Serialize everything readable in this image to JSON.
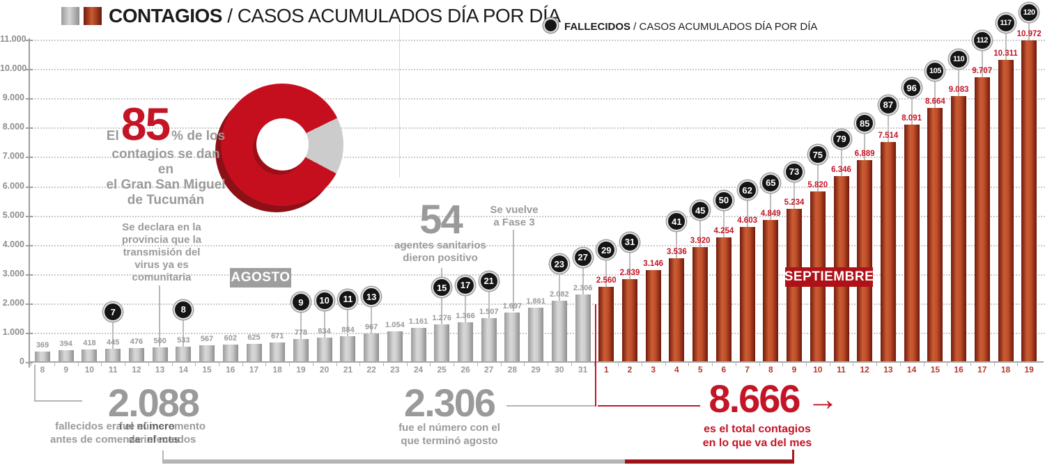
{
  "legend": {
    "contagios_bold": "CONTAGIOS",
    "contagios_rest": " / CASOS ACUMULADOS DÍA POR DÍA",
    "fallecidos_bold": "FALLECIDOS",
    "fallecidos_rest": " / CASOS ACUMULADOS DÍA POR DÍA"
  },
  "colors": {
    "accent_red": "#c41425",
    "dark_red": "#9e1317",
    "bar_red": "#bf4f2a",
    "bar_gray": "#bdbdbd",
    "text_gray": "#9a9a9a",
    "badge_black": "#151515"
  },
  "badges": {
    "agosto": "AGOSTO",
    "septiembre": "SEPTIEMBRE"
  },
  "donut": {
    "prefix": "El",
    "big": "85",
    "mid": "% de los",
    "rest": "contagios se dan en\nel Gran San Miguel\nde Tucumán",
    "red_pct": 85,
    "gray_pct": 15
  },
  "annotations": {
    "declara": "Se declara en la\nprovincia que la\ntransmisión del\nvirus ya es\ncomunitaria",
    "sanitarios_big": "54",
    "sanitarios_text": "agentes sanitarios\ndieron positivo",
    "fase3": "Se vuelve\na Fase 3"
  },
  "callouts": {
    "aug_start": {
      "number": "2.088",
      "caption_a": "fallecidos era el número\nantes de comenzar el mes",
      "caption_b": "fue el incremento\nde infectados"
    },
    "aug_end": {
      "number": "2.306",
      "caption": "fue el número con el\nque terminó agosto"
    },
    "sep": {
      "number": "8.666",
      "arrow": "→",
      "caption": "es el total contagios\nen lo que va del mes"
    }
  },
  "chart_data": {
    "type": "bar",
    "title": "CONTAGIOS / CASOS ACUMULADOS DÍA POR DÍA",
    "secondary_series_title": "FALLECIDOS / CASOS ACUMULADOS DÍA POR DÍA",
    "ylim": [
      0,
      11000
    ],
    "grid": true,
    "yticks": [
      {
        "v": 11000,
        "label": "11.000"
      },
      {
        "v": 10000,
        "label": "10.000"
      },
      {
        "v": 9000,
        "label": "9.000"
      },
      {
        "v": 8000,
        "label": "8.000"
      },
      {
        "v": 7000,
        "label": "7.000"
      },
      {
        "v": 6000,
        "label": "6.000"
      },
      {
        "v": 5000,
        "label": "5.000"
      },
      {
        "v": 4000,
        "label": "4.000"
      },
      {
        "v": 3000,
        "label": "3.000"
      },
      {
        "v": 2000,
        "label": "2.000"
      },
      {
        "v": 1000,
        "label": "1.000"
      },
      {
        "v": 0,
        "label": "0"
      }
    ],
    "months": [
      {
        "name": "AGOSTO",
        "days": [
          8,
          9,
          10,
          11,
          12,
          13,
          14,
          15,
          16,
          17,
          18,
          19,
          20,
          21,
          22,
          23,
          24,
          25,
          26,
          27,
          28,
          29,
          30,
          31
        ],
        "values": [
          369,
          394,
          418,
          445,
          476,
          500,
          533,
          567,
          602,
          625,
          671,
          778,
          834,
          884,
          967,
          1054,
          1161,
          1276,
          1366,
          1507,
          1697,
          1861,
          2082,
          2306
        ],
        "labels": [
          "369",
          "394",
          "418",
          "445",
          "476",
          "500",
          "533",
          "567",
          "602",
          "625",
          "671",
          "778",
          "834",
          "884",
          "967",
          "1.054",
          "1.161",
          "1.276",
          "1.366",
          "1.507",
          "1.697",
          "1.861",
          "2.082",
          "2.306"
        ]
      },
      {
        "name": "SEPTIEMBRE",
        "days": [
          1,
          2,
          3,
          4,
          5,
          6,
          7,
          8,
          9,
          10,
          11,
          12,
          13,
          14,
          15,
          16,
          17,
          18,
          19
        ],
        "values": [
          2560,
          2839,
          3146,
          3536,
          3920,
          4254,
          4603,
          4849,
          5234,
          5820,
          6346,
          6889,
          7514,
          8091,
          8664,
          9083,
          9707,
          10311,
          10972
        ],
        "labels": [
          "2.560",
          "2.839",
          "3.146",
          "3.536",
          "3.920",
          "4.254",
          "4.603",
          "4.849",
          "5.234",
          "5.820",
          "6.346",
          "6.889",
          "7.514",
          "8.091",
          "8.664",
          "9.083",
          "9.707",
          "10.311",
          "10.972"
        ]
      }
    ],
    "fallecidos": [
      {
        "m": 0,
        "day": 11,
        "label": "7"
      },
      {
        "m": 0,
        "day": 14,
        "label": "8"
      },
      {
        "m": 0,
        "day": 19,
        "label": "9"
      },
      {
        "m": 0,
        "day": 20,
        "label": "10"
      },
      {
        "m": 0,
        "day": 21,
        "label": "11"
      },
      {
        "m": 0,
        "day": 22,
        "label": "13"
      },
      {
        "m": 0,
        "day": 25,
        "label": "15"
      },
      {
        "m": 0,
        "day": 26,
        "label": "17"
      },
      {
        "m": 0,
        "day": 27,
        "label": "21"
      },
      {
        "m": 0,
        "day": 30,
        "label": "23"
      },
      {
        "m": 0,
        "day": 31,
        "label": "27"
      },
      {
        "m": 1,
        "day": 1,
        "label": "29"
      },
      {
        "m": 1,
        "day": 2,
        "label": "31"
      },
      {
        "m": 1,
        "day": 4,
        "label": "41"
      },
      {
        "m": 1,
        "day": 5,
        "label": "45"
      },
      {
        "m": 1,
        "day": 6,
        "label": "50"
      },
      {
        "m": 1,
        "day": 7,
        "label": "62"
      },
      {
        "m": 1,
        "day": 8,
        "label": "65"
      },
      {
        "m": 1,
        "day": 9,
        "label": "73"
      },
      {
        "m": 1,
        "day": 10,
        "label": "75"
      },
      {
        "m": 1,
        "day": 11,
        "label": "79"
      },
      {
        "m": 1,
        "day": 12,
        "label": "85"
      },
      {
        "m": 1,
        "day": 13,
        "label": "87"
      },
      {
        "m": 1,
        "day": 14,
        "label": "96"
      },
      {
        "m": 1,
        "day": 15,
        "label": "105"
      },
      {
        "m": 1,
        "day": 16,
        "label": "110"
      },
      {
        "m": 1,
        "day": 17,
        "label": "112"
      },
      {
        "m": 1,
        "day": 18,
        "label": "117"
      },
      {
        "m": 1,
        "day": 19,
        "label": "120"
      }
    ]
  }
}
